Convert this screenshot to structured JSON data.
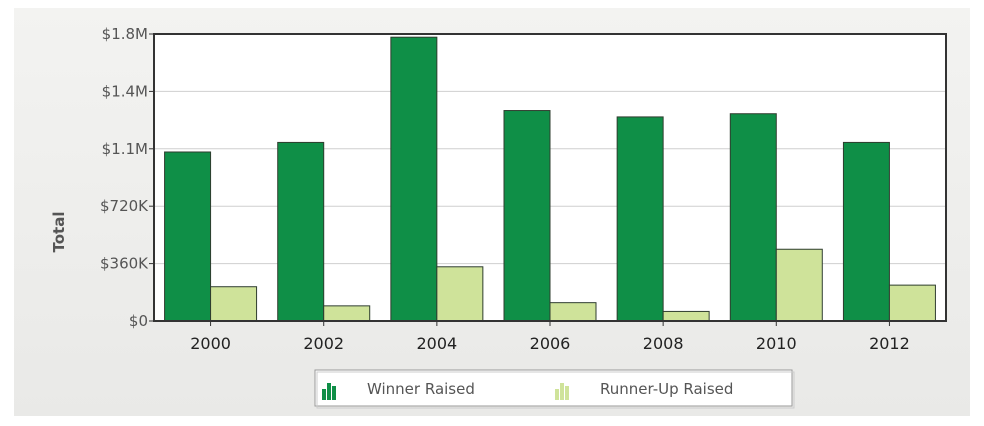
{
  "chart_data": {
    "type": "bar",
    "title": "",
    "xlabel": "",
    "ylabel": "Total",
    "categories": [
      "2000",
      "2002",
      "2004",
      "2006",
      "2008",
      "2010",
      "2012"
    ],
    "ylim": [
      0,
      1800000
    ],
    "yticks": [
      {
        "value": 0,
        "label": "$0"
      },
      {
        "value": 360000,
        "label": "$360K"
      },
      {
        "value": 720000,
        "label": "$720K"
      },
      {
        "value": 1080000,
        "label": "$1.1M"
      },
      {
        "value": 1440000,
        "label": "$1.4M"
      },
      {
        "value": 1800000,
        "label": "$1.8M"
      }
    ],
    "grid": "horizontal",
    "legend_position": "bottom-center",
    "series": [
      {
        "name": "Winner Raised",
        "color": "#0f8f47",
        "values": [
          1060000,
          1120000,
          1780000,
          1320000,
          1280000,
          1300000,
          1120000
        ]
      },
      {
        "name": "Runner-Up Raised",
        "color": "#cfe39a",
        "values": [
          215000,
          95000,
          340000,
          115000,
          60000,
          450000,
          225000
        ]
      }
    ]
  }
}
